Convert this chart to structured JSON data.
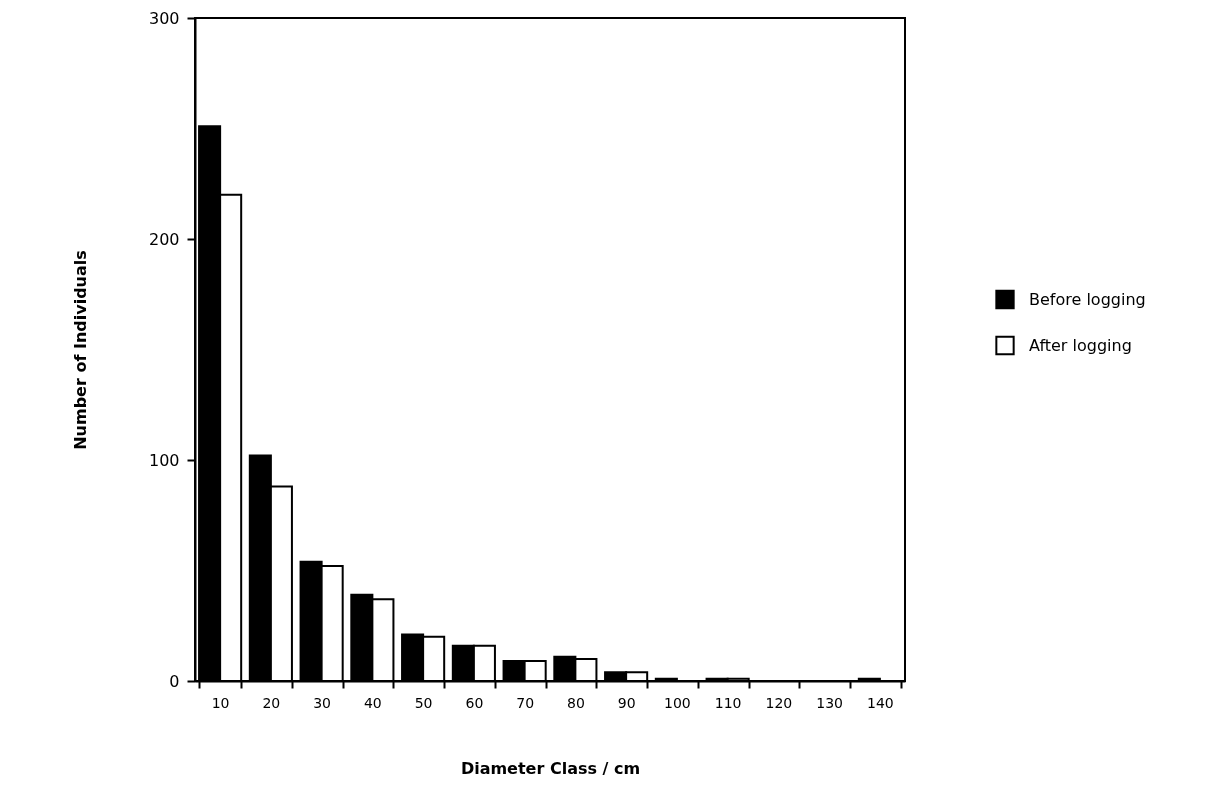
{
  "chart_data": {
    "type": "bar",
    "xlabel": "Diameter Class / cm",
    "ylabel": "Number of Individuals",
    "categories": [
      "10",
      "20",
      "30",
      "40",
      "50",
      "60",
      "70",
      "80",
      "90",
      "100",
      "110",
      "120",
      "130",
      "140"
    ],
    "series": [
      {
        "name": "Before logging",
        "color": "#000000",
        "values": [
          251,
          102,
          54,
          39,
          21,
          16,
          9,
          11,
          4,
          1,
          1,
          0,
          0,
          1
        ]
      },
      {
        "name": "After logging",
        "color": "#ffffff",
        "values": [
          220,
          88,
          52,
          37,
          20,
          16,
          9,
          10,
          4,
          0,
          1,
          0,
          0,
          0
        ]
      }
    ],
    "ylim": [
      0,
      300
    ],
    "yticks": [
      0,
      100,
      200,
      300
    ],
    "grid": false,
    "legend": "right"
  }
}
